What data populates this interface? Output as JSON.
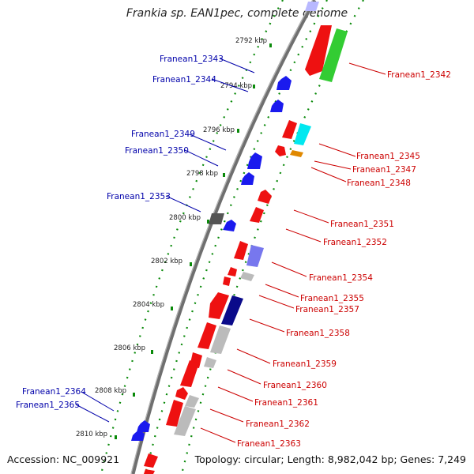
{
  "title": "Frankia sp. EAN1pec, complete genome",
  "accession": "Accession: NC_009921",
  "topology": "Topology: circular; Length: 8,982,042 bp; Genes: 7,249",
  "colors": {
    "backbone": "#7a7a7a",
    "ticks": "#0a8a0a",
    "left_labels": "#0000aa",
    "right_labels": "#cc0000"
  },
  "scale": [
    "2792 kbp",
    "2794 kbp",
    "2796 kbp",
    "2798 kbp",
    "2800 kbp",
    "2802 kbp",
    "2804 kbp",
    "2806 kbp",
    "2808 kbp",
    "2810 kbp"
  ],
  "left_labels": [
    "Franean1_2343",
    "Franean1_2344",
    "Franean1_2349",
    "Franean1_2350",
    "Franean1_2353",
    "Franean1_2364",
    "Franean1_2365"
  ],
  "right_labels": [
    "Franean1_2342",
    "Franean1_2345",
    "Franean1_2347",
    "Franean1_2348",
    "Franean1_2351",
    "Franean1_2352",
    "Franean1_2354",
    "Franean1_2355",
    "Franean1_2357",
    "Franean1_2358",
    "Franean1_2359",
    "Franean1_2360",
    "Franean1_2361",
    "Franean1_2362",
    "Franean1_2363"
  ]
}
